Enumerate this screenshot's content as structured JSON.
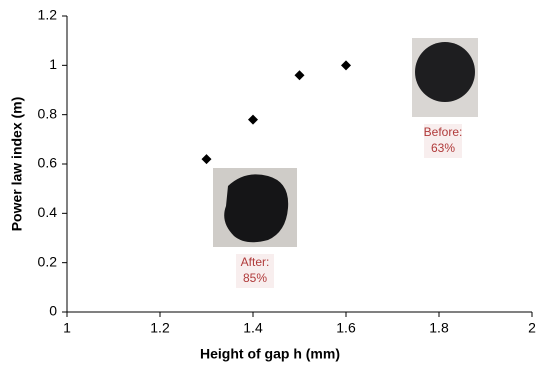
{
  "chart_data": {
    "type": "scatter",
    "x_label": "Height of gap h (mm)",
    "y_label": "Power law index (m)",
    "x": [
      1.3,
      1.4,
      1.5,
      1.6
    ],
    "values": [
      0.62,
      0.78,
      0.96,
      1.0
    ],
    "color": "#000000",
    "marker": "diamond",
    "xlim": [
      1,
      2
    ],
    "xticks": [
      1,
      1.2,
      1.4,
      1.6,
      1.8,
      2
    ],
    "ylim": [
      0,
      1.2
    ],
    "yticks": [
      0,
      0.2,
      0.4,
      0.6,
      0.8,
      1,
      1.2
    ],
    "grid": false,
    "annotations": [
      {
        "lines": [
          "Before:",
          "63%"
        ]
      },
      {
        "lines": [
          "After:",
          "85%"
        ]
      }
    ]
  }
}
